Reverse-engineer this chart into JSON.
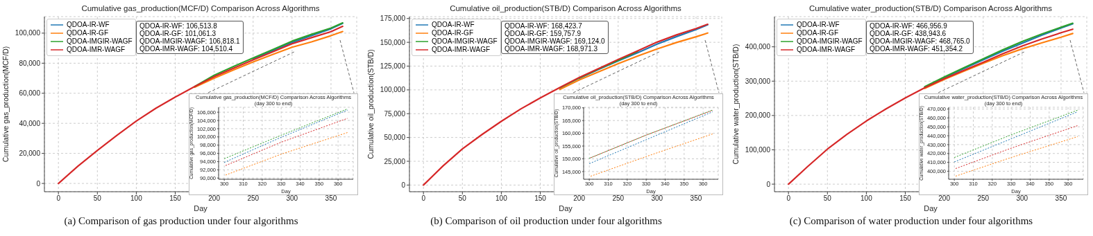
{
  "chart_data": [
    {
      "type": "line",
      "title": "Cumulative gas_production(MCF/D) Comparison Across Algorithms",
      "xlabel": "Day",
      "ylabel": "Cumulative gas_production(MCF/D)",
      "x": [
        0,
        25,
        50,
        75,
        100,
        125,
        150,
        175,
        200,
        225,
        250,
        275,
        300,
        325,
        350,
        365
      ],
      "series": [
        {
          "name": "QDOA-IR-WF",
          "color": "#1f77b4",
          "values": [
            null,
            null,
            null,
            null,
            null,
            null,
            null,
            null,
            null,
            null,
            82800,
            88200,
            93800,
            98400,
            102900,
            106513.8
          ]
        },
        {
          "name": "QDOA-IR-GF",
          "color": "#ff7f0e",
          "values": [
            null,
            null,
            null,
            null,
            null,
            null,
            null,
            64000,
            70000,
            75500,
            80800,
            85800,
            90600,
            94200,
            98300,
            101061.3
          ]
        },
        {
          "name": "QDOA-IMGIR-WAGF",
          "color": "#2ca02c",
          "values": [
            null,
            null,
            null,
            null,
            null,
            null,
            null,
            64500,
            72000,
            77800,
            83500,
            89000,
            94700,
            99200,
            103400,
            106818.1
          ]
        },
        {
          "name": "QDOA-IMR-WAGF",
          "color": "#d62728",
          "values": [
            0,
            11500,
            22000,
            32000,
            41500,
            50000,
            57500,
            64500,
            71000,
            76700,
            82200,
            87500,
            92900,
            97000,
            101000,
            104510.4
          ]
        }
      ],
      "xlim": [
        -18,
        383
      ],
      "xticks": [
        0,
        50,
        100,
        150,
        200,
        250,
        300,
        350
      ],
      "ylim": [
        -5500,
        111000
      ],
      "yticks": [
        {
          "value": 0,
          "label": "0"
        },
        {
          "value": 20000,
          "label": "20,000"
        },
        {
          "value": 40000,
          "label": "40,000"
        },
        {
          "value": 60000,
          "label": "60,000"
        },
        {
          "value": 80000,
          "label": "80,000"
        },
        {
          "value": 100000,
          "label": "100,000"
        }
      ],
      "grid": true,
      "legend": "top left",
      "annotations": [
        "QDOA-IR-WF: 106,513.8",
        "QDOA-IR-GF: 101,061.3",
        "QDOA-IMGIR-WAGF: 106,818.1",
        "QDOA-IMR-WAGF: 104,510.4",
        "(a) Comparison of gas production under four algorithms"
      ]
    },
    {
      "type": "line",
      "title": "Cumulative gas_production(MCF/D) Comparison Across Algorithms (day 300 to end)",
      "xlabel": "Day",
      "ylabel": "Cumulative gas_production(MCF/D)",
      "x": [
        300,
        330,
        365
      ],
      "series": [
        {
          "color": "#1f77b4",
          "values": [
            93800,
            99900,
            106513.8
          ]
        },
        {
          "color": "#ff7f0e",
          "values": [
            90600,
            95800,
            101061.3
          ]
        },
        {
          "color": "#2ca02c",
          "values": [
            94700,
            100400,
            106818.1
          ]
        },
        {
          "color": "#d62728",
          "values": [
            92900,
            98700,
            104510.4
          ]
        }
      ],
      "xlim": [
        297,
        368
      ],
      "xticks": [
        300,
        310,
        320,
        330,
        340,
        350,
        360
      ],
      "ylim": [
        89700,
        107200
      ],
      "yticks": [
        {
          "value": 90000,
          "label": "90,000"
        },
        {
          "value": 92000,
          "label": "92,000"
        },
        {
          "value": 94000,
          "label": "94,000"
        },
        {
          "value": 96000,
          "label": "96,000"
        },
        {
          "value": 98000,
          "label": "98,000"
        },
        {
          "value": 100000,
          "label": "100,000"
        },
        {
          "value": 102000,
          "label": "102,000"
        },
        {
          "value": 104000,
          "label": "104,000"
        },
        {
          "value": 106000,
          "label": "106,000"
        }
      ],
      "grid": true,
      "line_style": "dashed"
    },
    {
      "type": "line",
      "title": "Cumulative oil_production(STB/D) Comparison Across Algorithms",
      "xlabel": "Day",
      "ylabel": "Cumulative oil_production(STB/D)",
      "x": [
        0,
        25,
        50,
        75,
        100,
        125,
        150,
        175,
        200,
        225,
        250,
        275,
        300,
        325,
        350,
        365
      ],
      "series": [
        {
          "name": "QDOA-IR-WF",
          "color": "#1f77b4",
          "values": [
            null,
            null,
            null,
            null,
            null,
            null,
            null,
            null,
            112000,
            121500,
            130500,
            139000,
            148100,
            156000,
            163300,
            168423.7
          ]
        },
        {
          "name": "QDOA-IR-GF",
          "color": "#ff7f0e",
          "values": [
            null,
            null,
            null,
            null,
            null,
            null,
            null,
            100500,
            110500,
            119000,
            127500,
            135500,
            143000,
            149800,
            155800,
            159757.9
          ]
        },
        {
          "name": "QDOA-IMGIR-WAGF",
          "color": "#2ca02c",
          "values": [
            null,
            null,
            null,
            null,
            null,
            null,
            null,
            102000,
            112500,
            122000,
            131000,
            140500,
            null,
            null,
            null,
            null
          ]
        },
        {
          "name": "QDOA-IMR-WAGF",
          "color": "#d62728",
          "values": [
            0,
            20000,
            38000,
            53000,
            67000,
            80000,
            91500,
            102500,
            113000,
            122500,
            132000,
            141000,
            150200,
            157800,
            164500,
            168971.3
          ]
        }
      ],
      "xlim": [
        -18,
        383
      ],
      "xticks": [
        0,
        50,
        100,
        150,
        200,
        250,
        300,
        350
      ],
      "ylim": [
        -7000,
        177000
      ],
      "yticks": [
        {
          "value": 0,
          "label": "0"
        },
        {
          "value": 25000,
          "label": "25,000"
        },
        {
          "value": 50000,
          "label": "50,000"
        },
        {
          "value": 75000,
          "label": "75,000"
        },
        {
          "value": 100000,
          "label": "100,000"
        },
        {
          "value": 125000,
          "label": "125,000"
        },
        {
          "value": 150000,
          "label": "150,000"
        },
        {
          "value": 175000,
          "label": "175,000"
        }
      ],
      "grid": true,
      "legend": "top left",
      "annotations": [
        "QDOA-IR-WF: 168,423.7",
        "QDOA-IR-GF: 159,757.9",
        "QDOA-IMGIR-WAGF: 169,124.0",
        "QDOA-IMR-WAGF: 168,971.3",
        "(b) Comparison of oil production under four algorithms"
      ]
    },
    {
      "type": "line",
      "title": "Cumulative oil_production(STB/D) Comparison Across Algorithms (day 300 to end)",
      "xlabel": "Day",
      "ylabel": "Cumulative oil_production(STB/D)",
      "x": [
        300,
        330,
        365
      ],
      "series": [
        {
          "color": "#1f77b4",
          "values": [
            148100,
            157500,
            168423.7
          ]
        },
        {
          "color": "#ff7f0e",
          "values": [
            143000,
            150900,
            159757.9
          ]
        },
        {
          "color": "#2ca02c",
          "values": [
            150200,
            159300,
            169124.0
          ]
        },
        {
          "color": "#d62728",
          "values": [
            150200,
            159300,
            168971.3
          ]
        }
      ],
      "xlim": [
        297,
        368
      ],
      "xticks": [
        300,
        310,
        320,
        330,
        340,
        350,
        360
      ],
      "ylim": [
        142000,
        170200
      ],
      "yticks": [
        {
          "value": 145000,
          "label": "145,000"
        },
        {
          "value": 150000,
          "label": "150,000"
        },
        {
          "value": 155000,
          "label": "155,000"
        },
        {
          "value": 160000,
          "label": "160,000"
        },
        {
          "value": 165000,
          "label": "165,000"
        },
        {
          "value": 170000,
          "label": "170,000"
        }
      ],
      "grid": true,
      "line_style": "dashed"
    },
    {
      "type": "line",
      "title": "Cumulative water_production(STB/D) Comparison Across Algorithms",
      "xlabel": "Day",
      "ylabel": "Cumulative water_production(STB/D)",
      "x": [
        0,
        25,
        50,
        75,
        100,
        125,
        150,
        175,
        200,
        225,
        250,
        275,
        300,
        325,
        350,
        365
      ],
      "series": [
        {
          "name": "QDOA-IR-WF",
          "color": "#1f77b4",
          "values": [
            null,
            null,
            null,
            null,
            null,
            null,
            null,
            283000,
            310000,
            336500,
            362000,
            387000,
            410500,
            433500,
            455000,
            466956.9
          ]
        },
        {
          "name": "QDOA-IR-GF",
          "color": "#ff7f0e",
          "values": [
            null,
            null,
            null,
            null,
            null,
            null,
            null,
            279000,
            305000,
            329000,
            352000,
            374000,
            394000,
            411500,
            428000,
            438943.6
          ]
        },
        {
          "name": "QDOA-IMGIR-WAGF",
          "color": "#2ca02c",
          "values": [
            null,
            null,
            null,
            null,
            null,
            null,
            null,
            284000,
            312000,
            339000,
            365000,
            391000,
            415500,
            437000,
            457000,
            468765.0
          ]
        },
        {
          "name": "QDOA-IMR-WAGF",
          "color": "#d62728",
          "values": [
            0,
            52000,
            102000,
            145000,
            184000,
            219000,
            251000,
            281000,
            307000,
            331500,
            355000,
            379500,
            402500,
            422500,
            441000,
            451354.2
          ]
        }
      ],
      "xlim": [
        -18,
        383
      ],
      "xticks": [
        0,
        50,
        100,
        150,
        200,
        250,
        300,
        350
      ],
      "ylim": [
        -22000,
        488000
      ],
      "yticks": [
        {
          "value": 0,
          "label": "0"
        },
        {
          "value": 100000,
          "label": "100,000"
        },
        {
          "value": 200000,
          "label": "200,000"
        },
        {
          "value": 300000,
          "label": "300,000"
        },
        {
          "value": 400000,
          "label": "400,000"
        }
      ],
      "grid": true,
      "legend": "top left",
      "annotations": [
        "QDOA-IR-WF: 466,956.9",
        "QDOA-IR-GF: 438,943.6",
        "QDOA-IMGIR-WAGF: 468,765.0",
        "QDOA-IMR-WAGF: 451,354.2",
        "(c) Comparison of water production under four algorithms"
      ]
    },
    {
      "type": "line",
      "title": "Cumulative water_production(STB/D) Comparison Across Algorithms (day 300 to end)",
      "xlabel": "Day",
      "ylabel": "Cumulative water_production(STB/D)",
      "x": [
        300,
        330,
        365
      ],
      "series": [
        {
          "color": "#1f77b4",
          "values": [
            410500,
            436500,
            466956.9
          ]
        },
        {
          "color": "#ff7f0e",
          "values": [
            394000,
            415500,
            438943.6
          ]
        },
        {
          "color": "#2ca02c",
          "values": [
            415500,
            441000,
            468765.0
          ]
        },
        {
          "color": "#d62728",
          "values": [
            402500,
            426000,
            451354.2
          ]
        }
      ],
      "xlim": [
        297,
        368
      ],
      "xticks": [
        300,
        310,
        320,
        330,
        340,
        350,
        360
      ],
      "ylim": [
        391000,
        472000
      ],
      "yticks": [
        {
          "value": 400000,
          "label": "400,000"
        },
        {
          "value": 410000,
          "label": "410,000"
        },
        {
          "value": 420000,
          "label": "420,000"
        },
        {
          "value": 430000,
          "label": "430,000"
        },
        {
          "value": 440000,
          "label": "440,000"
        },
        {
          "value": 450000,
          "label": "450,000"
        },
        {
          "value": 460000,
          "label": "460,000"
        },
        {
          "value": 470000,
          "label": "470,000"
        }
      ],
      "grid": true,
      "line_style": "dashed"
    }
  ]
}
